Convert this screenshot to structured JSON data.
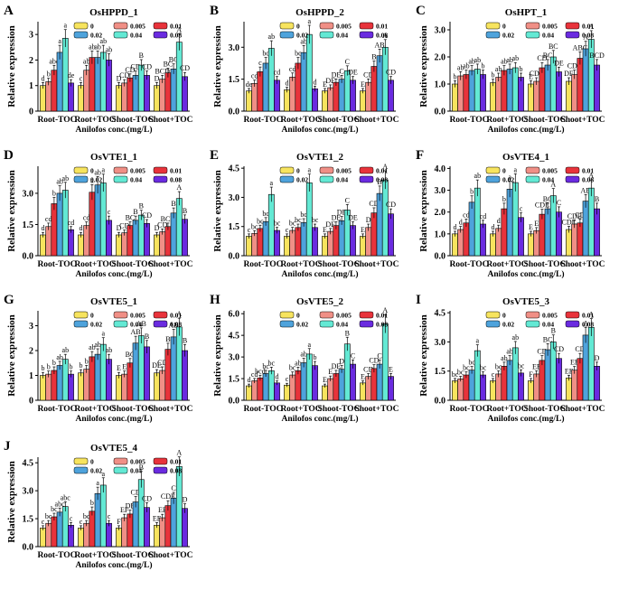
{
  "figure": {
    "groups": [
      "Root-TOC",
      "Root+TOC",
      "Shoot-TOC",
      "Shoot+TOC"
    ],
    "xlabel": "Anilofos conc.(mg/L)",
    "ylabel": "Relative expression",
    "legend": [
      "0",
      "0.005",
      "0.01",
      "0.02",
      "0.04",
      "0.08"
    ],
    "colors": [
      "#f7e45e",
      "#f08f86",
      "#e8333b",
      "#4ea3dc",
      "#63e9d4",
      "#6a2be0"
    ]
  },
  "chart_data": [
    {
      "type": "bar",
      "panel": "A",
      "title": "OsHPPD_1",
      "ylim": [
        0,
        3.5
      ],
      "yticks": [
        "0",
        "1",
        "2",
        "3"
      ],
      "series": [
        {
          "name": "0",
          "values": [
            1.0,
            1.0,
            1.0,
            1.0
          ]
        },
        {
          "name": "0.005",
          "values": [
            1.15,
            1.6,
            1.1,
            1.25
          ]
        },
        {
          "name": "0.01",
          "values": [
            1.6,
            2.1,
            1.3,
            1.5
          ]
        },
        {
          "name": "0.02",
          "values": [
            2.3,
            2.1,
            1.4,
            1.65
          ]
        },
        {
          "name": "0.04",
          "values": [
            2.85,
            2.3,
            1.8,
            2.7
          ]
        },
        {
          "name": "0.08",
          "values": [
            1.1,
            2.0,
            1.4,
            1.35
          ]
        }
      ],
      "letters": [
        [
          "d",
          "b",
          "abc",
          "a",
          "a",
          "de"
        ],
        [
          "c",
          "ab",
          "ab",
          "ab",
          "ab",
          "ab"
        ],
        [
          "D",
          "CD",
          "CD",
          "CD",
          "B",
          "CD"
        ],
        [
          "D",
          "BCD",
          "BC",
          "BC",
          "A",
          "CD"
        ]
      ]
    },
    {
      "type": "bar",
      "panel": "B",
      "title": "OsHPPD_2",
      "ylim": [
        0,
        4.2
      ],
      "yticks": [
        "0.0",
        "1.5",
        "3.0"
      ],
      "series": [
        {
          "name": "0",
          "values": [
            0.95,
            1.0,
            0.95,
            0.95
          ]
        },
        {
          "name": "0.005",
          "values": [
            1.3,
            1.6,
            1.1,
            1.35
          ]
        },
        {
          "name": "0.01",
          "values": [
            1.85,
            2.25,
            1.35,
            2.1
          ]
        },
        {
          "name": "0.02",
          "values": [
            2.25,
            2.75,
            1.5,
            2.6
          ]
        },
        {
          "name": "0.04",
          "values": [
            2.95,
            3.6,
            1.9,
            3.0
          ]
        },
        {
          "name": "0.08",
          "values": [
            1.45,
            1.05,
            1.45,
            1.45
          ]
        }
      ],
      "letters": [
        [
          "de",
          "cd",
          "c",
          "bc",
          "ab",
          "cd"
        ],
        [
          "d",
          "cd",
          "bc",
          "ab",
          "a",
          "d"
        ],
        [
          "E",
          "DE",
          "DE",
          "C",
          "C",
          "DE"
        ],
        [
          "E",
          "CD",
          "B",
          "AB",
          "A",
          "CD"
        ]
      ]
    },
    {
      "type": "bar",
      "panel": "C",
      "title": "OsHPT_1",
      "ylim": [
        0,
        3.3
      ],
      "yticks": [
        "0.0",
        "1.0",
        "2.0",
        "3.0"
      ],
      "series": [
        {
          "name": "0",
          "values": [
            1.0,
            1.05,
            1.0,
            1.1
          ]
        },
        {
          "name": "0.005",
          "values": [
            1.3,
            1.25,
            1.1,
            1.35
          ]
        },
        {
          "name": "0.01",
          "values": [
            1.35,
            1.5,
            1.6,
            1.95
          ]
        },
        {
          "name": "0.02",
          "values": [
            1.5,
            1.55,
            1.7,
            2.3
          ]
        },
        {
          "name": "0.04",
          "values": [
            1.55,
            1.6,
            2.0,
            2.65
          ]
        },
        {
          "name": "0.08",
          "values": [
            1.35,
            1.25,
            1.45,
            1.7
          ]
        }
      ],
      "letters": [
        [
          "b",
          "ab",
          "ab",
          "ab",
          "ab",
          "b"
        ],
        [
          "b",
          "ab",
          "ab",
          "ab",
          "ab",
          "b"
        ],
        [
          "E",
          "CDE",
          "CD",
          "BC",
          "BC",
          "DE"
        ],
        [
          "DE",
          "CDE",
          "ABC",
          "A",
          "A",
          "BCD"
        ]
      ]
    },
    {
      "type": "bar",
      "panel": "D",
      "title": "OsVTE1_1",
      "ylim": [
        0,
        4.3
      ],
      "yticks": [
        "0.0",
        "1.5",
        "3.0"
      ],
      "series": [
        {
          "name": "0",
          "values": [
            1.0,
            1.0,
            1.0,
            1.0
          ]
        },
        {
          "name": "0.005",
          "values": [
            1.4,
            1.45,
            1.1,
            1.15
          ]
        },
        {
          "name": "0.01",
          "values": [
            2.5,
            3.05,
            1.45,
            1.4
          ]
        },
        {
          "name": "0.02",
          "values": [
            3.0,
            3.4,
            1.7,
            2.05
          ]
        },
        {
          "name": "0.04",
          "values": [
            3.15,
            3.5,
            1.95,
            2.75
          ]
        },
        {
          "name": "0.08",
          "values": [
            1.25,
            1.7,
            1.55,
            1.75
          ]
        }
      ],
      "letters": [
        [
          "d",
          "cd",
          "b",
          "ab",
          "ab",
          "cd"
        ],
        [
          "d",
          "cd",
          "a",
          "ab",
          "a",
          "c"
        ],
        [
          "D",
          "CD",
          "BC",
          "B",
          "B",
          "CD"
        ],
        [
          "D",
          "CD",
          "BCD",
          "B",
          "A",
          "B"
        ]
      ]
    },
    {
      "type": "bar",
      "panel": "E",
      "title": "OsVTE1_2",
      "ylim": [
        0,
        4.6
      ],
      "yticks": [
        "0.0",
        "1.5",
        "3.0",
        "4.5"
      ],
      "series": [
        {
          "name": "0",
          "values": [
            1.0,
            1.0,
            1.0,
            1.0
          ]
        },
        {
          "name": "0.005",
          "values": [
            1.15,
            1.3,
            1.25,
            1.45
          ]
        },
        {
          "name": "0.01",
          "values": [
            1.4,
            1.45,
            1.55,
            2.2
          ]
        },
        {
          "name": "0.02",
          "values": [
            1.75,
            1.7,
            1.8,
            3.2
          ]
        },
        {
          "name": "0.04",
          "values": [
            3.15,
            3.75,
            2.35,
            3.9
          ]
        },
        {
          "name": "0.08",
          "values": [
            1.3,
            1.45,
            1.55,
            2.15
          ]
        }
      ],
      "letters": [
        [
          "c",
          "bc",
          "bc",
          "bc",
          "a",
          "bc"
        ],
        [
          "c",
          "bc",
          "bc",
          "bc",
          "a",
          "bc"
        ],
        [
          "E",
          "DE",
          "DE",
          "DE",
          "C",
          "DE"
        ],
        [
          "E",
          "D",
          "CD",
          "B",
          "A",
          "CD"
        ]
      ]
    },
    {
      "type": "bar",
      "panel": "F",
      "title": "OsVTE4_1",
      "ylim": [
        0,
        4.1
      ],
      "yticks": [
        "0.0",
        "1.0",
        "2.0",
        "3.0",
        "4.0"
      ],
      "series": [
        {
          "name": "0",
          "values": [
            1.0,
            1.0,
            1.0,
            1.2
          ]
        },
        {
          "name": "0.005",
          "values": [
            1.2,
            1.25,
            1.15,
            1.45
          ]
        },
        {
          "name": "0.01",
          "values": [
            1.5,
            2.15,
            1.9,
            1.5
          ]
        },
        {
          "name": "0.02",
          "values": [
            2.45,
            3.05,
            2.15,
            2.5
          ]
        },
        {
          "name": "0.04",
          "values": [
            3.1,
            3.35,
            2.75,
            3.1
          ]
        },
        {
          "name": "0.08",
          "values": [
            1.45,
            1.75,
            2.0,
            2.15
          ]
        }
      ],
      "letters": [
        [
          "d",
          "d",
          "cd",
          "b",
          "ab",
          "cd"
        ],
        [
          "d",
          "d",
          "b",
          "a",
          "a",
          "c"
        ],
        [
          "E",
          "E",
          "CDE",
          "BC",
          "A",
          "C"
        ],
        [
          "CDE",
          "CDE",
          "CD",
          "AB",
          "A",
          "B"
        ]
      ]
    },
    {
      "type": "bar",
      "panel": "G",
      "title": "OsVTE5_1",
      "ylim": [
        0,
        3.6
      ],
      "yticks": [
        "0",
        "1",
        "2",
        "3"
      ],
      "series": [
        {
          "name": "0",
          "values": [
            1.0,
            1.1,
            1.0,
            1.1
          ]
        },
        {
          "name": "0.005",
          "values": [
            1.05,
            1.25,
            1.05,
            1.2
          ]
        },
        {
          "name": "0.01",
          "values": [
            1.2,
            1.75,
            1.5,
            2.05
          ]
        },
        {
          "name": "0.02",
          "values": [
            1.4,
            1.85,
            2.3,
            2.55
          ]
        },
        {
          "name": "0.04",
          "values": [
            1.65,
            2.25,
            2.6,
            2.95
          ]
        },
        {
          "name": "0.08",
          "values": [
            1.05,
            1.65,
            2.15,
            2.0
          ]
        }
      ],
      "letters": [
        [
          "b",
          "b",
          "b",
          "ab",
          "ab",
          "b"
        ],
        [
          "b",
          "b",
          "ab",
          "ab",
          "a",
          "ab"
        ],
        [
          "E",
          "E",
          "BC",
          "AB",
          "AB",
          "B"
        ],
        [
          "DE",
          "CD",
          "B",
          "AB",
          "A",
          "B"
        ]
      ]
    },
    {
      "type": "bar",
      "panel": "H",
      "title": "OsVTE5_2",
      "ylim": [
        0,
        6.2
      ],
      "yticks": [
        "0.0",
        "1.5",
        "3.0",
        "4.5",
        "6.0"
      ],
      "series": [
        {
          "name": "0",
          "values": [
            1.0,
            1.05,
            1.0,
            1.2
          ]
        },
        {
          "name": "0.005",
          "values": [
            1.35,
            1.75,
            1.5,
            1.65
          ]
        },
        {
          "name": "0.01",
          "values": [
            1.55,
            2.05,
            1.85,
            2.2
          ]
        },
        {
          "name": "0.02",
          "values": [
            1.85,
            2.6,
            2.15,
            2.5
          ]
        },
        {
          "name": "0.04",
          "values": [
            2.05,
            3.2,
            3.9,
            5.3
          ]
        },
        {
          "name": "0.08",
          "values": [
            1.2,
            2.4,
            2.5,
            1.65
          ]
        }
      ],
      "letters": [
        [
          "d",
          "cd",
          "bcd",
          "bc",
          "bc",
          "d"
        ],
        [
          "c",
          "bc",
          "ab",
          "ab",
          "a",
          "b"
        ],
        [
          "E",
          "E",
          "DE",
          "D",
          "B",
          "C"
        ],
        [
          "E",
          "CD",
          "CD",
          "C",
          "A",
          "E"
        ]
      ]
    },
    {
      "type": "bar",
      "panel": "I",
      "title": "OsVTE5_3",
      "ylim": [
        0,
        4.6
      ],
      "yticks": [
        "0.0",
        "1.5",
        "3.0",
        "4.5"
      ],
      "series": [
        {
          "name": "0",
          "values": [
            1.0,
            1.0,
            1.0,
            1.15
          ]
        },
        {
          "name": "0.005",
          "values": [
            1.1,
            1.35,
            1.35,
            1.55
          ]
        },
        {
          "name": "0.01",
          "values": [
            1.3,
            1.75,
            2.05,
            2.15
          ]
        },
        {
          "name": "0.02",
          "values": [
            1.55,
            2.05,
            2.6,
            3.35
          ]
        },
        {
          "name": "0.04",
          "values": [
            2.55,
            2.7,
            3.0,
            3.75
          ]
        },
        {
          "name": "0.08",
          "values": [
            1.3,
            1.4,
            2.15,
            1.75
          ]
        }
      ],
      "letters": [
        [
          "bc",
          "bc",
          "bc",
          "bc",
          "a",
          "bc"
        ],
        [
          "c",
          "bc",
          "ab",
          "ab",
          "ab",
          "bc"
        ],
        [
          "F",
          "EF",
          "CD",
          "BC",
          "B",
          "CD"
        ],
        [
          "EF",
          "EF",
          "CD",
          "A",
          "A",
          "D"
        ]
      ]
    },
    {
      "type": "bar",
      "panel": "J",
      "title": "OsVTE5_4",
      "ylim": [
        0,
        4.8
      ],
      "yticks": [
        "0.0",
        "1.5",
        "3.0",
        "4.5"
      ],
      "series": [
        {
          "name": "0",
          "values": [
            1.0,
            1.0,
            1.0,
            1.15
          ]
        },
        {
          "name": "0.005",
          "values": [
            1.25,
            1.25,
            1.55,
            1.55
          ]
        },
        {
          "name": "0.01",
          "values": [
            1.6,
            1.9,
            1.75,
            2.2
          ]
        },
        {
          "name": "0.02",
          "values": [
            1.85,
            2.85,
            2.4,
            2.6
          ]
        },
        {
          "name": "0.04",
          "values": [
            2.15,
            3.3,
            3.6,
            4.3
          ]
        },
        {
          "name": "0.08",
          "values": [
            1.15,
            1.25,
            2.1,
            2.05
          ]
        }
      ],
      "letters": [
        [
          "c",
          "bc",
          "bc",
          "abc",
          "abc",
          "c"
        ],
        [
          "c",
          "bc",
          "b",
          "a",
          "a",
          "c"
        ],
        [
          "F",
          "EF",
          "DE",
          "CD",
          "B",
          "CD"
        ],
        [
          "EF",
          "EF",
          "CDE",
          "C",
          "A",
          "D"
        ]
      ]
    }
  ]
}
